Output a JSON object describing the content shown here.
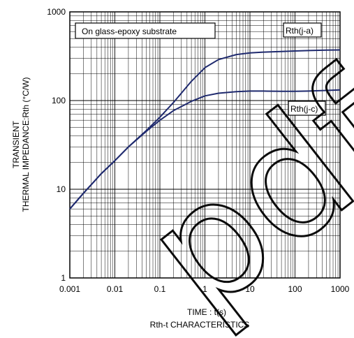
{
  "chart_data": {
    "type": "line",
    "title": "Rth-t CHARACTERISTICS",
    "xlabel": "TIME : t(s)",
    "ylabel": [
      "TRANSIENT",
      "THERMAL IMPEDANCE:Rth (°C/W)"
    ],
    "x_scale": "log",
    "y_scale": "log",
    "xlim": [
      0.001,
      1000
    ],
    "ylim": [
      1,
      1000
    ],
    "x_ticks": [
      "0.001",
      "0.01",
      "0.1",
      "1",
      "10",
      "100",
      "1000"
    ],
    "y_ticks": [
      "1",
      "10",
      "100",
      "1000"
    ],
    "grid": true,
    "annotation": "On glass-epoxy substrate",
    "series": [
      {
        "name": "Rth(j-a)",
        "color": "#1f2a6e",
        "points": [
          [
            0.001,
            6
          ],
          [
            0.002,
            9
          ],
          [
            0.005,
            15
          ],
          [
            0.01,
            21
          ],
          [
            0.02,
            30
          ],
          [
            0.05,
            46
          ],
          [
            0.1,
            65
          ],
          [
            0.2,
            95
          ],
          [
            0.5,
            165
          ],
          [
            1,
            235
          ],
          [
            2,
            290
          ],
          [
            5,
            330
          ],
          [
            10,
            345
          ],
          [
            20,
            352
          ],
          [
            50,
            358
          ],
          [
            100,
            362
          ],
          [
            200,
            366
          ],
          [
            500,
            370
          ],
          [
            1000,
            372
          ]
        ]
      },
      {
        "name": "Rth(j-c)",
        "color": "#1f2a6e",
        "points": [
          [
            0.001,
            6
          ],
          [
            0.002,
            9
          ],
          [
            0.005,
            15
          ],
          [
            0.01,
            21
          ],
          [
            0.02,
            30
          ],
          [
            0.05,
            45
          ],
          [
            0.1,
            60
          ],
          [
            0.2,
            77
          ],
          [
            0.5,
            98
          ],
          [
            1,
            113
          ],
          [
            2,
            121
          ],
          [
            5,
            126
          ],
          [
            10,
            128
          ],
          [
            20,
            128
          ],
          [
            50,
            127
          ],
          [
            100,
            127
          ],
          [
            200,
            128
          ],
          [
            500,
            130
          ],
          [
            1000,
            132
          ]
        ]
      }
    ]
  },
  "watermark": "pdf"
}
